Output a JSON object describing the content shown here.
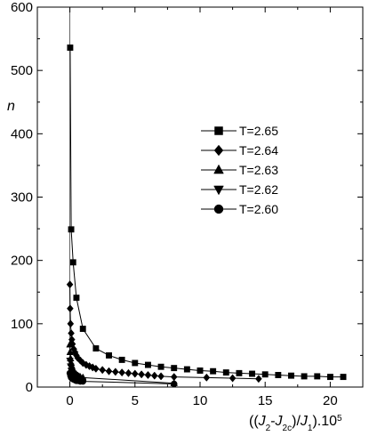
{
  "chart_data": {
    "type": "line",
    "xlabel": "((J2-J2c)/J1).10^5",
    "ylabel": "n",
    "xlim": [
      -2.5,
      22.5
    ],
    "ylim": [
      0,
      600
    ],
    "xticks": [
      0,
      5,
      10,
      15,
      20
    ],
    "yticks": [
      0,
      100,
      200,
      300,
      400,
      500,
      600
    ],
    "legend_position": "center-right",
    "series": [
      {
        "name": "T=2.65",
        "marker": "square",
        "line": "solid",
        "x": [
          0.02,
          0.1,
          0.25,
          0.5,
          1.0,
          2.0,
          3.0,
          4.0,
          5.0,
          6.0,
          7.0,
          8.0,
          9.0,
          10.0,
          11.0,
          12.0,
          13.0,
          14.0,
          15.0,
          16.0,
          17.0,
          18.0,
          19.0,
          20.0,
          21.0
        ],
        "y": [
          536,
          249,
          197,
          141,
          92,
          61,
          50,
          43,
          38,
          35,
          32,
          30,
          28,
          26,
          25,
          23,
          22,
          21,
          20,
          19,
          18,
          17,
          17,
          16,
          16
        ]
      },
      {
        "name": "T=2.64",
        "marker": "diamond",
        "line": "solid",
        "x": [
          0.0,
          0.02,
          0.05,
          0.1,
          0.15,
          0.2,
          0.3,
          0.4,
          0.5,
          0.6,
          0.8,
          1.0,
          1.25,
          1.5,
          1.75,
          2.0,
          2.5,
          3.0,
          3.5,
          4.0,
          4.5,
          5.0,
          5.5,
          6.0,
          6.5,
          7.0,
          8.0,
          10.5,
          12.5,
          14.5
        ],
        "y": [
          162,
          124,
          100,
          85,
          75,
          68,
          60,
          55,
          50,
          46,
          42,
          38,
          35,
          33,
          31,
          29,
          27,
          25,
          24,
          23,
          22,
          21,
          20,
          19,
          18,
          17,
          16,
          15,
          14,
          13
        ]
      },
      {
        "name": "T=2.63",
        "marker": "triangle-up",
        "line": "solid",
        "x": [
          0.0,
          0.02,
          0.05,
          0.1,
          0.15,
          0.2,
          0.3,
          0.4,
          0.5,
          0.6,
          0.7,
          0.8,
          1.0,
          8.0
        ],
        "y": [
          67,
          55,
          45,
          38,
          33,
          29,
          25,
          22,
          20,
          18,
          17,
          16,
          15,
          6
        ]
      },
      {
        "name": "T=2.62",
        "marker": "triangle-down",
        "line": "solid",
        "x": [
          0.0,
          0.05,
          0.1,
          0.2,
          0.3,
          0.4,
          0.5,
          0.6,
          0.8,
          1.0
        ],
        "y": [
          42,
          33,
          26,
          21,
          18,
          16,
          14,
          13,
          12,
          11
        ]
      },
      {
        "name": "T=2.60",
        "marker": "circle",
        "line": "solid",
        "x": [
          0.0,
          0.05,
          0.1,
          0.2,
          0.3,
          0.4,
          0.5,
          0.6,
          0.8,
          1.0,
          8.0
        ],
        "y": [
          22,
          18,
          15,
          13,
          12,
          11,
          10,
          10,
          9,
          9,
          5
        ]
      }
    ]
  }
}
